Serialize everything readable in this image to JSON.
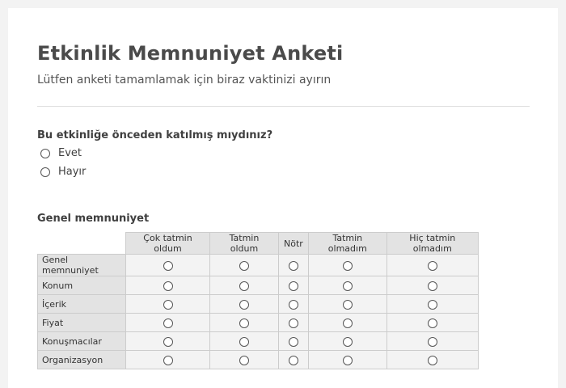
{
  "survey": {
    "title": "Etkinlik Memnuniyet Anketi",
    "subtitle": "Lütfen anketi tamamlamak için biraz vaktinizi ayırın",
    "question1": {
      "label": "Bu etkinliğe önceden katılmış mıydınız?",
      "options": [
        "Evet",
        "Hayır"
      ]
    },
    "question2": {
      "label": "Genel memnuniyet",
      "columns": [
        "Çok tatmin oldum",
        "Tatmin oldum",
        "Nötr",
        "Tatmin olmadım",
        "Hiç tatmin olmadım"
      ],
      "rows": [
        "Genel memnuniyet",
        "Konum",
        "İçerik",
        "Fiyat",
        "Konuşmacılar",
        "Organizasyon"
      ]
    }
  }
}
